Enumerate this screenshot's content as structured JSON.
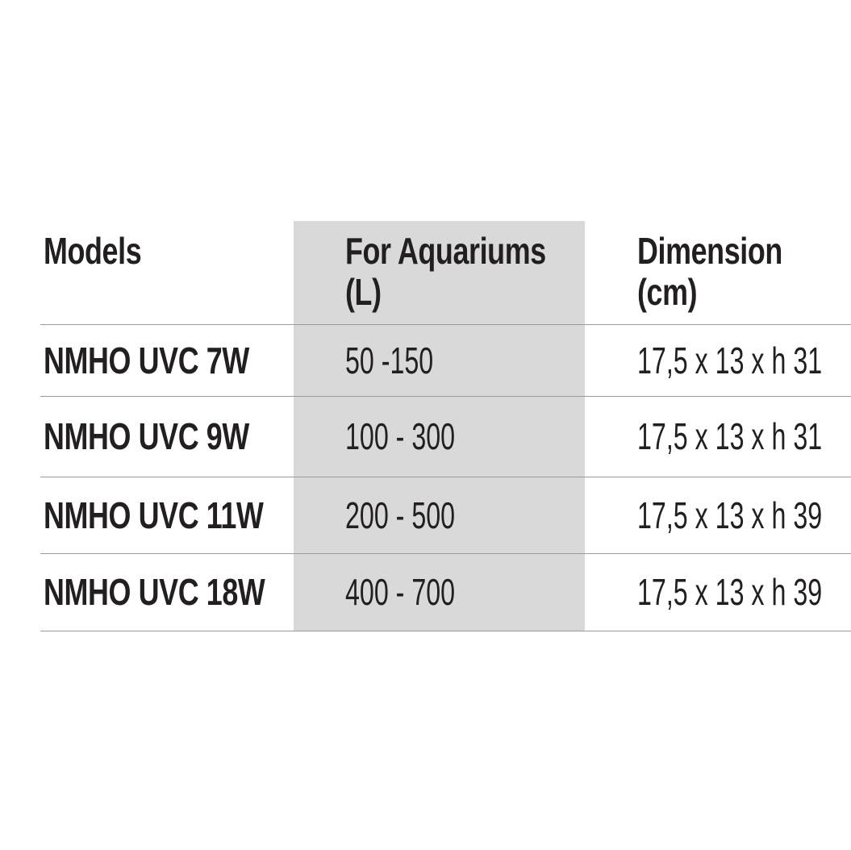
{
  "colors": {
    "page_background": "#ffffff",
    "highlight_column_background": "#d9d9d9",
    "row_separator_line": "#9b9b9b",
    "text": "#231f20"
  },
  "table": {
    "header": {
      "models": "Models",
      "aquariums_line1": "For Aquariums",
      "aquariums_line2": "(L)",
      "dimension_line1": "Dimension",
      "dimension_line2": "(cm)"
    },
    "rows": [
      {
        "model": "NMHO UVC 7W",
        "aquariums": "50 -150",
        "dimension": "17,5 x 13 x h 31"
      },
      {
        "model": "NMHO UVC 9W",
        "aquariums": "100 - 300",
        "dimension": "17,5 x 13 x h 31"
      },
      {
        "model": "NMHO UVC 11W",
        "aquariums": "200 - 500",
        "dimension": "17,5 x 13 x h 39"
      },
      {
        "model": "NMHO UVC 18W",
        "aquariums": "400 - 700",
        "dimension": "17,5 x 13 x h 39"
      }
    ]
  }
}
